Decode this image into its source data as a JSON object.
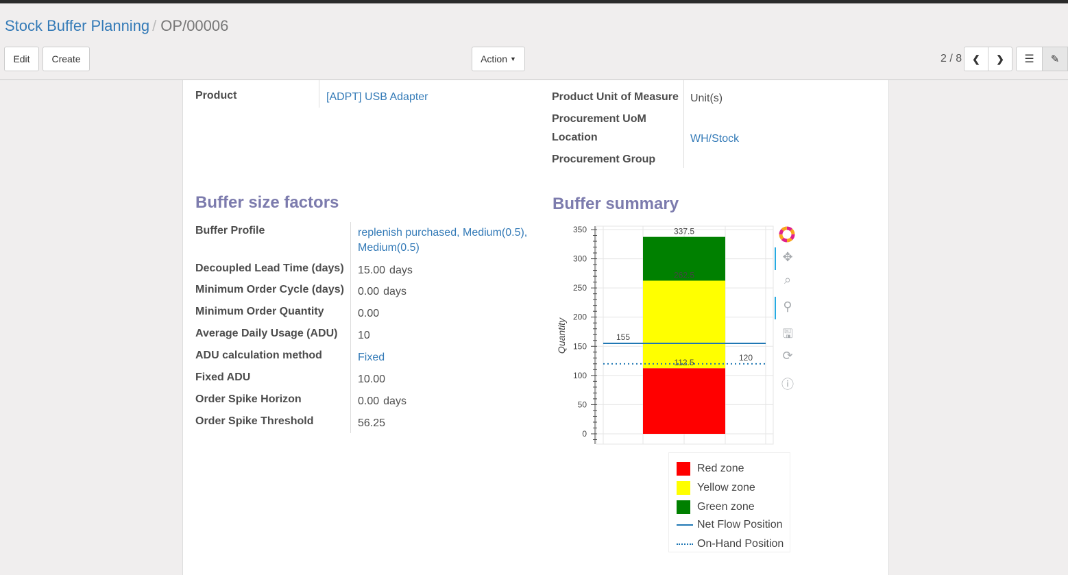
{
  "breadcrumb": {
    "parent": "Stock Buffer Planning",
    "current": "OP/00006"
  },
  "toolbar": {
    "edit": "Edit",
    "create": "Create",
    "action": "Action",
    "pager": "2 / 8"
  },
  "form": {
    "product_label": "Product",
    "product_value": "[ADPT] USB Adapter",
    "uom_label": "Product Unit of Measure",
    "uom_value": "Unit(s)",
    "proc_uom_label": "Procurement UoM",
    "location_label": "Location",
    "location_value": "WH/Stock",
    "proc_group_label": "Procurement Group"
  },
  "factors": {
    "title": "Buffer size factors",
    "rows": [
      {
        "label": "Buffer Profile",
        "value": "replenish purchased, Medium(0.5),",
        "value2": "Medium(0.5)",
        "link": true
      },
      {
        "label": "Decoupled Lead Time (days)",
        "value": "15.00",
        "unit": "days"
      },
      {
        "label": "Minimum Order Cycle (days)",
        "value": "0.00",
        "unit": "days"
      },
      {
        "label": "Minimum Order Quantity",
        "value": "0.00"
      },
      {
        "label": "Average Daily Usage (ADU)",
        "value": "10"
      },
      {
        "label": "ADU calculation method",
        "value": "Fixed",
        "link": true
      },
      {
        "label": "Fixed ADU",
        "value": "10.00"
      },
      {
        "label": "Order Spike Horizon",
        "value": "0.00",
        "unit": "days"
      },
      {
        "label": "Order Spike Threshold",
        "value": "56.25"
      }
    ]
  },
  "summary": {
    "title": "Buffer summary"
  },
  "chart_data": {
    "type": "bar",
    "stacked": true,
    "ylabel": "Quantity",
    "ylim": [
      0,
      350
    ],
    "yticks": [
      0,
      50,
      100,
      150,
      200,
      250,
      300,
      350
    ],
    "grid": true,
    "segments": [
      {
        "name": "Red zone",
        "from": 0,
        "to": 112.5,
        "color": "#ff0000",
        "label": "112.5"
      },
      {
        "name": "Yellow zone",
        "from": 112.5,
        "to": 262.5,
        "color": "#ffff00",
        "label": "262.5"
      },
      {
        "name": "Green zone",
        "from": 262.5,
        "to": 337.5,
        "color": "#008000",
        "label": "337.5"
      }
    ],
    "lines": [
      {
        "name": "Net Flow Position",
        "value": 155,
        "style": "solid",
        "color": "#1f77b4",
        "label": "155"
      },
      {
        "name": "On-Hand Position",
        "value": 120,
        "style": "dotted",
        "color": "#1f77b4",
        "label": "120"
      }
    ],
    "legend_position": "bottom",
    "tools": [
      "bokeh-logo-icon",
      "pan-icon",
      "box-zoom-icon",
      "wheel-zoom-icon",
      "save-icon",
      "reset-icon",
      "help-icon"
    ]
  }
}
